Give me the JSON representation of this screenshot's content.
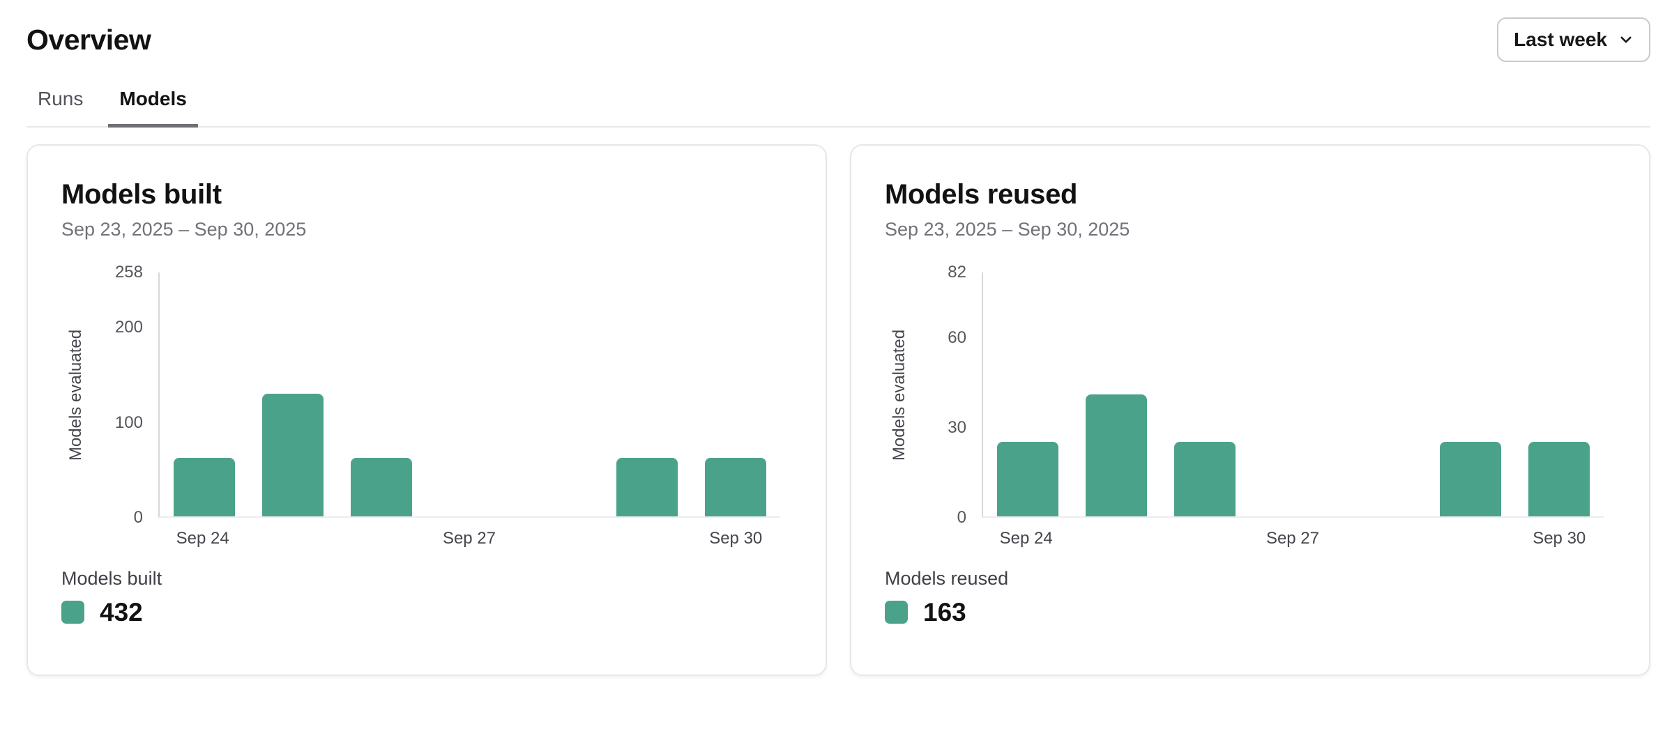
{
  "header": {
    "title": "Overview",
    "range_selector": {
      "label": "Last week",
      "icon": "chevron-down-icon"
    }
  },
  "tabs": [
    {
      "label": "Runs",
      "active": false
    },
    {
      "label": "Models",
      "active": true
    }
  ],
  "colors": {
    "accent": "#4BA28A",
    "tab_underline": "#6f6f76",
    "card_border": "#e7e7e9"
  },
  "chart_data": [
    {
      "type": "bar",
      "card_title": "Models built",
      "date_range": "Sep 23, 2025 – Sep 30, 2025",
      "ylabel": "Models evaluated",
      "ylim": [
        0,
        258
      ],
      "yticks": [
        0,
        100,
        200,
        258
      ],
      "categories": [
        "Sep 24",
        "Sep 25",
        "Sep 26",
        "Sep 27",
        "Sep 28",
        "Sep 29",
        "Sep 30"
      ],
      "values": [
        62,
        130,
        62,
        0,
        0,
        62,
        62
      ],
      "xticks_shown": [
        "Sep 24",
        "Sep 27",
        "Sep 30"
      ],
      "bar_color": "#4BA28A",
      "grid": false,
      "legend_position": "bottom-left",
      "legend": {
        "label": "Models built",
        "total": "432"
      }
    },
    {
      "type": "bar",
      "card_title": "Models reused",
      "date_range": "Sep 23, 2025 – Sep 30, 2025",
      "ylabel": "Models evaluated",
      "ylim": [
        0,
        82
      ],
      "yticks": [
        0,
        30,
        60,
        82
      ],
      "categories": [
        "Sep 24",
        "Sep 25",
        "Sep 26",
        "Sep 27",
        "Sep 28",
        "Sep 29",
        "Sep 30"
      ],
      "values": [
        25,
        41,
        25,
        0,
        0,
        25,
        25
      ],
      "xticks_shown": [
        "Sep 24",
        "Sep 27",
        "Sep 30"
      ],
      "bar_color": "#4BA28A",
      "grid": false,
      "legend_position": "bottom-left",
      "legend": {
        "label": "Models reused",
        "total": "163"
      }
    }
  ]
}
